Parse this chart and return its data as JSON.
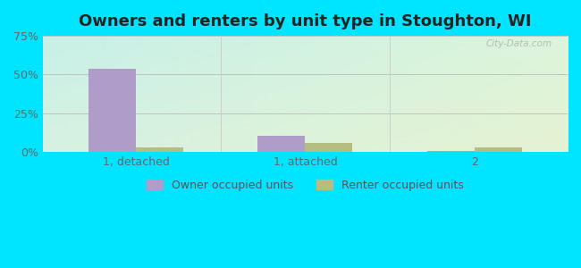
{
  "title": "Owners and renters by unit type in Stoughton, WI",
  "categories": [
    "1, detached",
    "1, attached",
    "2"
  ],
  "owner_values": [
    54.0,
    10.5,
    0.8
  ],
  "renter_values": [
    2.8,
    6.0,
    3.2
  ],
  "owner_color": "#b09cc8",
  "renter_color": "#b5be80",
  "ylim": [
    0,
    75
  ],
  "yticks": [
    0,
    25,
    50,
    75
  ],
  "ytick_labels": [
    "0%",
    "25%",
    "50%",
    "75%"
  ],
  "legend_owner": "Owner occupied units",
  "legend_renter": "Renter occupied units",
  "bg_topleft": "#c8efe8",
  "bg_bottomright": "#dff0d0",
  "outer_bg": "#00e5ff",
  "bar_width": 0.28,
  "title_fontsize": 13,
  "tick_fontsize": 9,
  "legend_fontsize": 9,
  "watermark": "City-Data.com"
}
